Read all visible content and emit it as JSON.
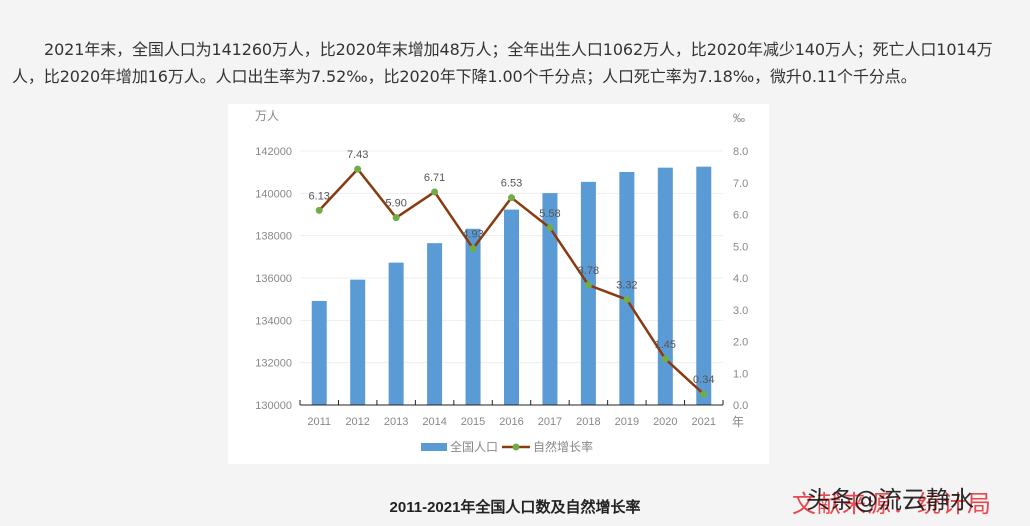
{
  "article": {
    "paragraph": "2021年末，全国人口为141260万人，比2020年末增加48万人；全年出生人口1062万人，比2020年减少140万人；死亡人口1014万人，比2020年增加16万人。人口出生率为7.52‰，比2020年下降1.00个千分点；人口死亡率为7.18‰，微升0.11个千分点。",
    "caption": "2011-2021年全国人口数及自然增长率"
  },
  "watermark": {
    "overlay_text": "头条@流云静水",
    "source_text": "文献来源：统计局"
  },
  "colors": {
    "bar": "#5b9bd5",
    "line": "#8b3a0f",
    "marker": "#70ad47",
    "axis_text": "#888888",
    "grid": "#eeeeee",
    "label_text": "#555555"
  },
  "chart_data": {
    "type": "bar+line",
    "title": "2011-2021年全国人口数及自然增长率",
    "categories": [
      "2011",
      "2012",
      "2013",
      "2014",
      "2015",
      "2016",
      "2017",
      "2018",
      "2019",
      "2020",
      "2021"
    ],
    "series": [
      {
        "name": "全国人口",
        "type": "bar",
        "axis": "left",
        "values": [
          134916,
          135922,
          136726,
          137646,
          138326,
          139232,
          140011,
          140541,
          141008,
          141212,
          141260
        ]
      },
      {
        "name": "自然增长率",
        "type": "line",
        "axis": "right",
        "values": [
          6.13,
          7.43,
          5.9,
          6.71,
          4.93,
          6.53,
          5.58,
          3.78,
          3.32,
          1.45,
          0.34
        ],
        "labels": [
          "6.13",
          "7.43",
          "5.90",
          "6.71",
          "4.93",
          "6.53",
          "5.58",
          "3.78",
          "3.32",
          "1.45",
          "0.34"
        ]
      }
    ],
    "left_axis": {
      "label": "万人",
      "ylim": [
        130000,
        142000
      ],
      "ticks": [
        "130000",
        "132000",
        "134000",
        "136000",
        "138000",
        "140000",
        "142000"
      ]
    },
    "right_axis": {
      "label": "‰",
      "ylim": [
        0,
        8
      ],
      "ticks": [
        "0.0",
        "1.0",
        "2.0",
        "3.0",
        "4.0",
        "5.0",
        "6.0",
        "7.0",
        "8.0"
      ]
    },
    "xlabel": "年",
    "grid": true,
    "legend": {
      "position": "bottom",
      "entries": [
        "全国人口",
        "自然增长率"
      ]
    }
  }
}
